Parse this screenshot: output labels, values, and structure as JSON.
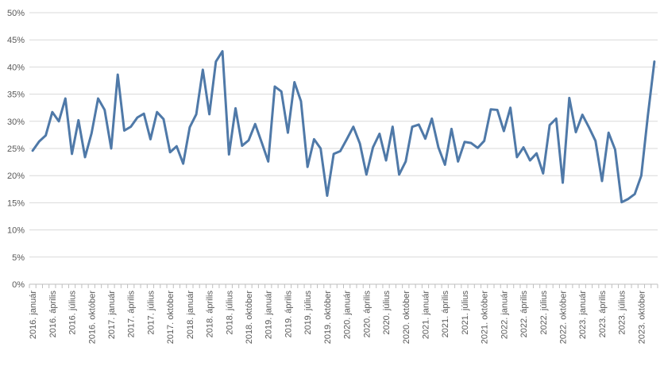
{
  "chart_data": {
    "type": "line",
    "title": "",
    "xlabel": "",
    "ylabel": "",
    "ylim": [
      0,
      50
    ],
    "y_ticks": [
      "0%",
      "5%",
      "10%",
      "15%",
      "20%",
      "25%",
      "30%",
      "35%",
      "40%",
      "45%",
      "50%"
    ],
    "x_tick_labels": [
      "2016. január",
      "2016. április",
      "2016. július",
      "2016. október",
      "2017. január",
      "2017. április",
      "2017. július",
      "2017. október",
      "2018. január",
      "2018. április",
      "2018. július",
      "2018. október",
      "2019. január",
      "2019. április",
      "2019. július",
      "2019. október",
      "2020. január",
      "2020. április",
      "2020. július",
      "2020. október",
      "2021. január",
      "2021. április",
      "2021. július",
      "2021. október",
      "2022. január",
      "2022. április",
      "2022. július",
      "2022. október",
      "2023. január",
      "2023. április",
      "2023. július",
      "2023. október"
    ],
    "grid": true,
    "legend": "none",
    "series_color": "#4f79a8",
    "values": [
      24.6,
      26.3,
      27.4,
      31.7,
      30.0,
      34.2,
      24.0,
      30.2,
      23.4,
      27.8,
      34.2,
      32.1,
      25.0,
      38.6,
      28.3,
      29.0,
      30.7,
      31.4,
      26.7,
      31.7,
      30.4,
      24.3,
      25.4,
      22.2,
      28.9,
      31.3,
      39.5,
      31.3,
      41.0,
      42.9,
      23.9,
      32.4,
      25.5,
      26.5,
      29.5,
      26.1,
      22.6,
      36.4,
      35.5,
      27.9,
      37.2,
      33.7,
      21.6,
      26.7,
      25.0,
      16.3,
      24.0,
      24.5,
      26.7,
      29.0,
      25.9,
      20.2,
      25.2,
      27.7,
      22.8,
      29.0,
      20.2,
      22.6,
      29.0,
      29.4,
      26.8,
      30.5,
      25.2,
      22.0,
      28.6,
      22.6,
      26.2,
      26.0,
      25.1,
      26.4,
      32.2,
      32.1,
      28.2,
      32.5,
      23.4,
      25.2,
      22.8,
      24.1,
      20.4,
      29.3,
      30.5,
      18.7,
      34.3,
      28.0,
      31.2,
      28.9,
      26.4,
      19.0,
      27.9,
      24.8,
      15.1,
      15.7,
      16.6,
      20.0,
      31.0,
      41.0
    ]
  }
}
